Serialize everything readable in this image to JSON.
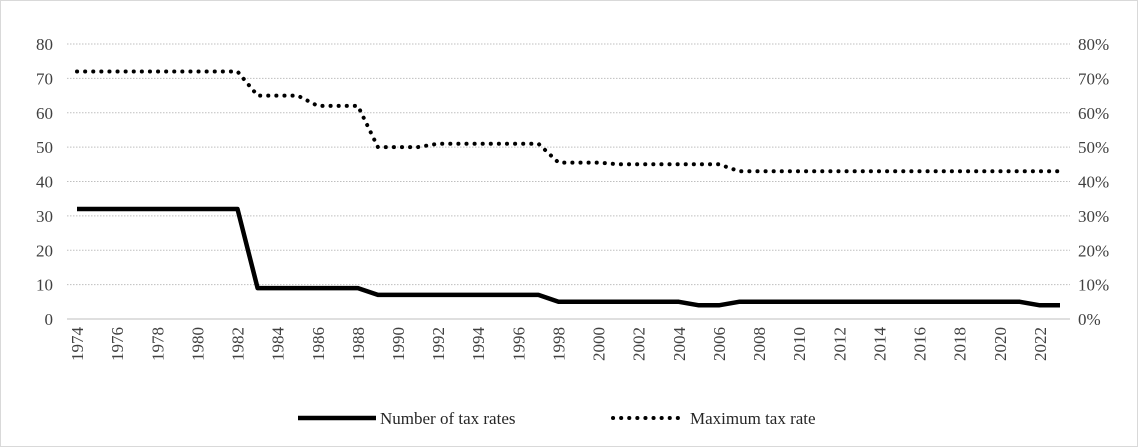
{
  "chart_data": {
    "type": "line",
    "title": "",
    "xlabel": "",
    "ylabel_left": "",
    "ylabel_right": "",
    "x": [
      1974,
      1975,
      1976,
      1977,
      1978,
      1979,
      1980,
      1981,
      1982,
      1983,
      1984,
      1985,
      1986,
      1987,
      1988,
      1989,
      1990,
      1991,
      1992,
      1993,
      1994,
      1995,
      1996,
      1997,
      1998,
      1999,
      2000,
      2001,
      2002,
      2003,
      2004,
      2005,
      2006,
      2007,
      2008,
      2009,
      2010,
      2011,
      2012,
      2013,
      2014,
      2015,
      2016,
      2017,
      2018,
      2019,
      2020,
      2021,
      2022,
      2023
    ],
    "x_tick_labels": [
      "1974",
      "1976",
      "1978",
      "1980",
      "1982",
      "1984",
      "1986",
      "1988",
      "1990",
      "1992",
      "1994",
      "1996",
      "1998",
      "2000",
      "2002",
      "2004",
      "2006",
      "2008",
      "2010",
      "2012",
      "2014",
      "2016",
      "2018",
      "2020",
      "2022"
    ],
    "ylim_left": [
      0,
      80
    ],
    "y_left_ticks": [
      "0",
      "10",
      "20",
      "30",
      "40",
      "50",
      "60",
      "70",
      "80"
    ],
    "ylim_right": [
      0,
      0.8
    ],
    "y_right_ticks": [
      "0%",
      "10%",
      "20%",
      "30%",
      "40%",
      "50%",
      "60%",
      "70%",
      "80%"
    ],
    "grid": true,
    "legend_position": "bottom",
    "series": [
      {
        "name": "Number of tax rates",
        "axis": "left",
        "style": "solid",
        "color": "#000000",
        "values": [
          32,
          32,
          32,
          32,
          32,
          32,
          32,
          32,
          32,
          9,
          9,
          9,
          9,
          9,
          9,
          7,
          7,
          7,
          7,
          7,
          7,
          7,
          7,
          7,
          5,
          5,
          5,
          5,
          5,
          5,
          5,
          4,
          4,
          5,
          5,
          5,
          5,
          5,
          5,
          5,
          5,
          5,
          5,
          5,
          5,
          5,
          5,
          5,
          4,
          4
        ]
      },
      {
        "name": "Maximum tax rate",
        "axis": "right",
        "style": "dotted",
        "color": "#000000",
        "values": [
          0.72,
          0.72,
          0.72,
          0.72,
          0.72,
          0.72,
          0.72,
          0.72,
          0.72,
          0.65,
          0.65,
          0.65,
          0.62,
          0.62,
          0.62,
          0.5,
          0.5,
          0.5,
          0.51,
          0.51,
          0.51,
          0.51,
          0.51,
          0.51,
          0.455,
          0.455,
          0.455,
          0.45,
          0.45,
          0.45,
          0.45,
          0.45,
          0.45,
          0.43,
          0.43,
          0.43,
          0.43,
          0.43,
          0.43,
          0.43,
          0.43,
          0.43,
          0.43,
          0.43,
          0.43,
          0.43,
          0.43,
          0.43,
          0.43,
          0.43
        ]
      }
    ]
  }
}
